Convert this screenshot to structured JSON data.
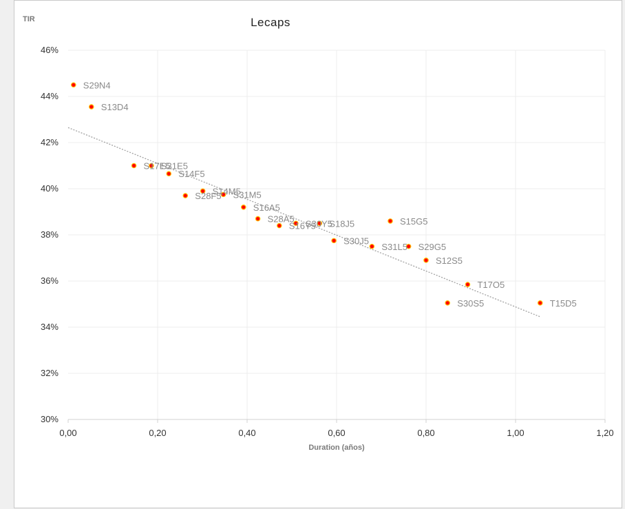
{
  "chart_data": {
    "type": "scatter",
    "title": "Lecaps",
    "xlabel": "Duration (años)",
    "ylabel": "TIR",
    "xlim": [
      0,
      1.2
    ],
    "ylim": [
      30,
      46
    ],
    "x_ticks": [
      "0,00",
      "0,20",
      "0,40",
      "0,60",
      "0,80",
      "1,00",
      "1,20"
    ],
    "y_ticks": [
      "30%",
      "32%",
      "34%",
      "36%",
      "38%",
      "40%",
      "42%",
      "44%",
      "46%"
    ],
    "grid": true,
    "legend": "none",
    "marker_color": "#ff0000",
    "marker_edge_color": "#ffc000",
    "trendline": {
      "type": "linear",
      "x": [
        0.0,
        1.055
      ],
      "y": [
        42.65,
        34.45
      ],
      "color": "#a0a0a0"
    },
    "points": [
      {
        "label": "S29N4",
        "x": 0.012,
        "y": 44.5
      },
      {
        "label": "S13D4",
        "x": 0.052,
        "y": 43.55
      },
      {
        "label": "S17E5",
        "x": 0.147,
        "y": 41.0
      },
      {
        "label": "S31E5",
        "x": 0.186,
        "y": 41.0
      },
      {
        "label": "S14F5",
        "x": 0.225,
        "y": 40.65
      },
      {
        "label": "S28F5",
        "x": 0.262,
        "y": 39.7
      },
      {
        "label": "S14M5",
        "x": 0.301,
        "y": 39.9
      },
      {
        "label": "S31M5",
        "x": 0.347,
        "y": 39.75
      },
      {
        "label": "S16A5",
        "x": 0.392,
        "y": 39.2
      },
      {
        "label": "S28A5",
        "x": 0.424,
        "y": 38.7
      },
      {
        "label": "S16Y5",
        "x": 0.472,
        "y": 38.4
      },
      {
        "label": "S30Y5",
        "x": 0.509,
        "y": 38.5
      },
      {
        "label": "S18J5",
        "x": 0.562,
        "y": 38.5
      },
      {
        "label": "S30J5",
        "x": 0.594,
        "y": 37.75
      },
      {
        "label": "S31L5",
        "x": 0.679,
        "y": 37.5
      },
      {
        "label": "S15G5",
        "x": 0.72,
        "y": 38.6
      },
      {
        "label": "S29G5",
        "x": 0.761,
        "y": 37.5
      },
      {
        "label": "S12S5",
        "x": 0.8,
        "y": 36.9
      },
      {
        "label": "S30S5",
        "x": 0.848,
        "y": 35.05
      },
      {
        "label": "T17O5",
        "x": 0.893,
        "y": 35.85
      },
      {
        "label": "T15D5",
        "x": 1.055,
        "y": 35.05
      }
    ]
  }
}
